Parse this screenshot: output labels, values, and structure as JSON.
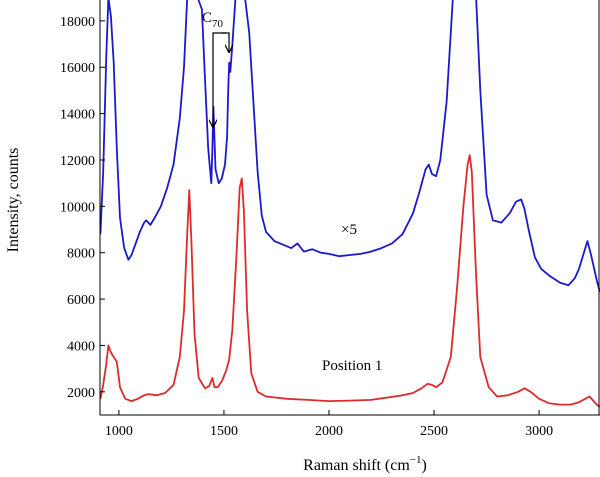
{
  "chart_data": {
    "type": "line",
    "title": "",
    "xlabel_main": "Raman shift (cm",
    "xlabel_sup": "−1",
    "xlabel_close": ")",
    "ylabel": "Intensity, counts",
    "xlim": [
      910,
      3290
    ],
    "ylim": [
      1000,
      18900
    ],
    "x_ticks": [
      1000,
      1500,
      2000,
      2500,
      3000
    ],
    "y_ticks": [
      2000,
      4000,
      6000,
      8000,
      10000,
      12000,
      14000,
      16000,
      18000
    ],
    "grid": false,
    "annotations": {
      "c70_main": "C",
      "c70_sub": "70",
      "scale_factor": "×5",
      "position_label": "Position 1"
    },
    "series": [
      {
        "color": "#1a1acc",
        "x": [
          912,
          925,
          940,
          950,
          962,
          975,
          990,
          1005,
          1025,
          1045,
          1060,
          1080,
          1100,
          1120,
          1130,
          1150,
          1170,
          1200,
          1230,
          1260,
          1290,
          1310,
          1325,
          1345,
          1360,
          1375,
          1395,
          1410,
          1425,
          1440,
          1445,
          1450,
          1460,
          1475,
          1490,
          1505,
          1515,
          1520,
          1525,
          1530,
          1540,
          1555,
          1570,
          1600,
          1620,
          1640,
          1660,
          1680,
          1700,
          1740,
          1780,
          1820,
          1850,
          1880,
          1920,
          1960,
          2000,
          2050,
          2100,
          2150,
          2200,
          2250,
          2300,
          2350,
          2400,
          2430,
          2460,
          2475,
          2490,
          2510,
          2530,
          2560,
          2590,
          2610,
          2630,
          2700,
          2720,
          2750,
          2780,
          2820,
          2860,
          2890,
          2915,
          2930,
          2950,
          2980,
          3010,
          3050,
          3100,
          3140,
          3170,
          3190,
          3210,
          3230,
          3245,
          3260,
          3275,
          3290
        ],
        "y": [
          8800,
          11500,
          16500,
          19000,
          18200,
          16200,
          12500,
          9500,
          8200,
          7700,
          7900,
          8400,
          8900,
          9300,
          9400,
          9200,
          9500,
          10000,
          10800,
          11800,
          13800,
          16000,
          19000,
          19000,
          19000,
          19000,
          18500,
          15500,
          12500,
          11000,
          12500,
          14300,
          11600,
          11000,
          11200,
          11800,
          13000,
          15000,
          16200,
          15800,
          17000,
          19000,
          19000,
          19000,
          17500,
          14500,
          11500,
          9600,
          8900,
          8500,
          8350,
          8200,
          8400,
          8050,
          8150,
          8000,
          7950,
          7850,
          7900,
          7950,
          8050,
          8200,
          8400,
          8800,
          9700,
          10600,
          11600,
          11800,
          11400,
          11300,
          12000,
          14500,
          19000,
          19000,
          19000,
          19000,
          15000,
          10500,
          9400,
          9300,
          9700,
          10200,
          10300,
          9900,
          9000,
          7800,
          7300,
          7000,
          6700,
          6600,
          6900,
          7300,
          7900,
          8500,
          8000,
          7400,
          6800,
          6300
        ]
      },
      {
        "color": "#dd2b2b",
        "x": [
          912,
          925,
          940,
          950,
          962,
          975,
          990,
          1005,
          1030,
          1060,
          1090,
          1120,
          1140,
          1180,
          1220,
          1260,
          1290,
          1310,
          1325,
          1335,
          1345,
          1360,
          1380,
          1410,
          1430,
          1445,
          1455,
          1470,
          1490,
          1510,
          1525,
          1540,
          1560,
          1575,
          1585,
          1595,
          1610,
          1630,
          1660,
          1700,
          1800,
          1900,
          2000,
          2100,
          2200,
          2300,
          2350,
          2400,
          2440,
          2470,
          2490,
          2510,
          2540,
          2580,
          2610,
          2640,
          2660,
          2670,
          2680,
          2700,
          2720,
          2760,
          2800,
          2850,
          2900,
          2930,
          2960,
          3000,
          3050,
          3100,
          3150,
          3190,
          3220,
          3240,
          3260,
          3275,
          3290
        ],
        "y": [
          1700,
          2300,
          3200,
          4000,
          3700,
          3500,
          3300,
          2200,
          1700,
          1600,
          1700,
          1850,
          1900,
          1850,
          1950,
          2300,
          3500,
          5500,
          8800,
          10700,
          8500,
          4500,
          2600,
          2150,
          2250,
          2600,
          2200,
          2200,
          2450,
          2900,
          3400,
          4700,
          8000,
          10800,
          11200,
          9800,
          5500,
          2800,
          2000,
          1800,
          1700,
          1650,
          1600,
          1620,
          1650,
          1780,
          1850,
          1950,
          2150,
          2350,
          2300,
          2200,
          2400,
          3500,
          6500,
          10000,
          11800,
          12200,
          11500,
          7000,
          3500,
          2200,
          1800,
          1850,
          2000,
          2150,
          2000,
          1700,
          1500,
          1450,
          1450,
          1550,
          1700,
          1800,
          1600,
          1450,
          1350
        ]
      }
    ]
  }
}
